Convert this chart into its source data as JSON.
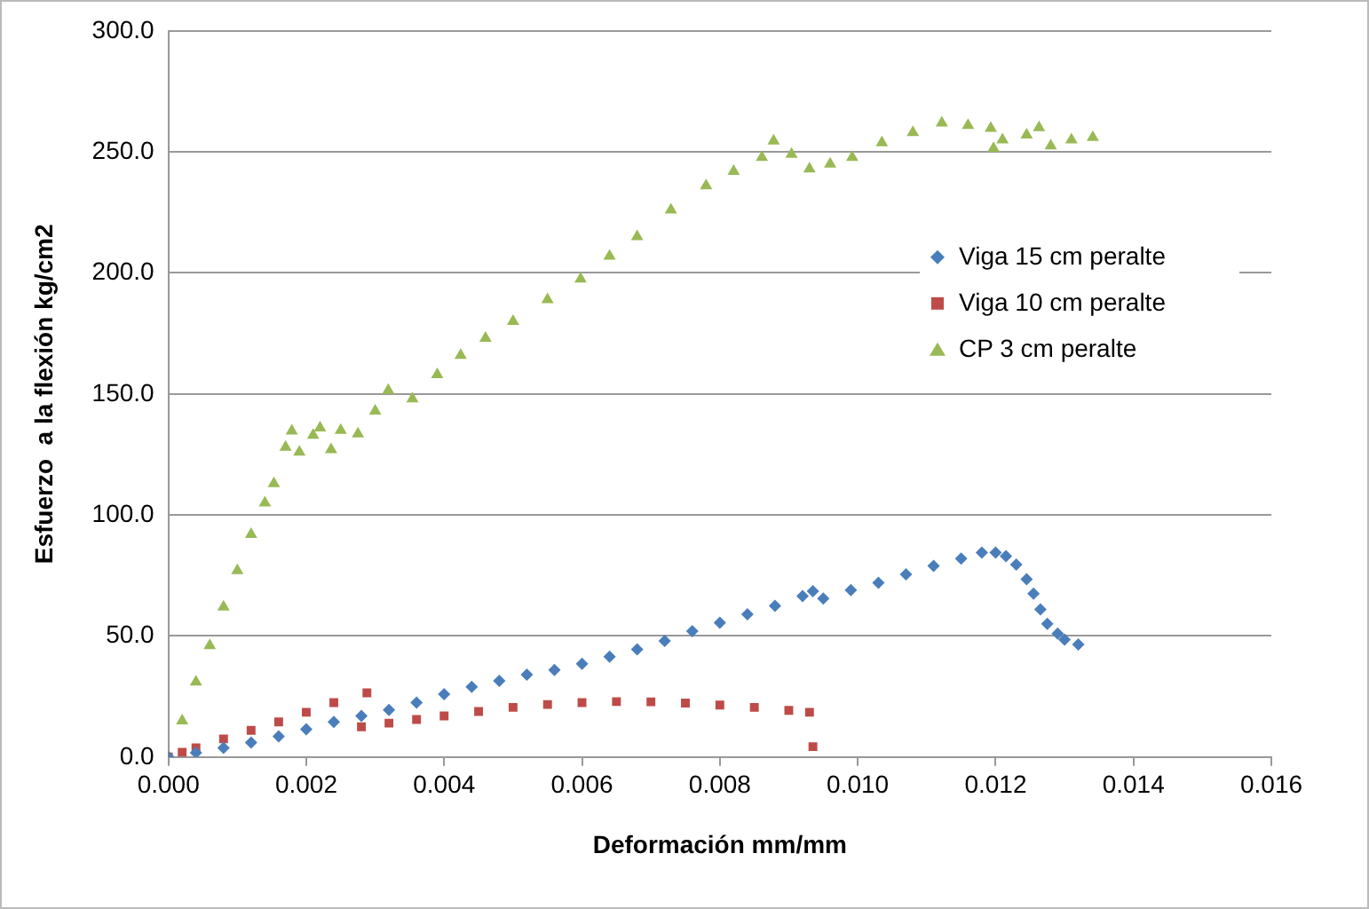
{
  "chart_data": {
    "type": "scatter",
    "xlabel": "Deformación mm/mm",
    "ylabel": "Esfuerzo  a la flexión kg/cm2",
    "xlim": [
      0,
      0.016
    ],
    "xticks": [
      {
        "value": 0,
        "label": "0.000"
      },
      {
        "value": 0.002,
        "label": "0.002"
      },
      {
        "value": 0.004,
        "label": "0.004"
      },
      {
        "value": 0.006,
        "label": "0.006"
      },
      {
        "value": 0.008,
        "label": "0.008"
      },
      {
        "value": 0.01,
        "label": "0.010"
      },
      {
        "value": 0.012,
        "label": "0.012"
      },
      {
        "value": 0.014,
        "label": "0.014"
      },
      {
        "value": 0.016,
        "label": "0.016"
      }
    ],
    "ylim": [
      0,
      300
    ],
    "yticks": [
      {
        "value": 0,
        "label": "0.0"
      },
      {
        "value": 50,
        "label": "50.0"
      },
      {
        "value": 100,
        "label": "100.0"
      },
      {
        "value": 150,
        "label": "150.0"
      },
      {
        "value": 200,
        "label": "200.0"
      },
      {
        "value": 250,
        "label": "250.0"
      },
      {
        "value": 300,
        "label": "300.0"
      }
    ],
    "grid": "y",
    "legend": "right",
    "series": [
      {
        "name": "Viga 15 cm peralte",
        "color": "#4a7ebb",
        "marker": "diamond",
        "x": [
          0,
          0.0004,
          0.0008,
          0.0012,
          0.0016,
          0.002,
          0.0024,
          0.0028,
          0.0032,
          0.0036,
          0.004,
          0.0044,
          0.0048,
          0.0052,
          0.0056,
          0.006,
          0.0064,
          0.0068,
          0.0072,
          0.0076,
          0.008,
          0.0084,
          0.0088,
          0.0092,
          0.00935,
          0.0095,
          0.0099,
          0.0103,
          0.0107,
          0.0111,
          0.0115,
          0.0118,
          0.012,
          0.01215,
          0.0123,
          0.01245,
          0.01255,
          0.01265,
          0.01275,
          0.0129,
          0.013,
          0.0132
        ],
        "values": [
          0,
          1.8,
          3.8,
          6,
          8.5,
          11.5,
          14.5,
          17,
          19.5,
          22.5,
          26,
          29,
          31.5,
          34,
          36,
          38.5,
          41.5,
          44.5,
          48,
          52,
          55.5,
          59,
          62.5,
          66.5,
          68.5,
          65.5,
          69,
          72,
          75.5,
          79,
          82,
          84.5,
          84.5,
          83,
          79.5,
          73.5,
          67.5,
          61,
          55,
          51,
          48.5,
          46.5
        ]
      },
      {
        "name": "Viga 10 cm peralte",
        "color": "#be4b48",
        "marker": "square",
        "x": [
          0,
          0.0002,
          0.0004,
          0.0008,
          0.0012,
          0.0016,
          0.002,
          0.0024,
          0.00288,
          0.0028,
          0.0032,
          0.0036,
          0.004,
          0.0045,
          0.005,
          0.0055,
          0.006,
          0.0065,
          0.007,
          0.0075,
          0.008,
          0.0085,
          0.009,
          0.0093,
          0.00935
        ],
        "values": [
          0,
          2,
          3.8,
          7.5,
          11,
          14.5,
          18.5,
          22.5,
          26.5,
          12.5,
          14,
          15.5,
          17,
          18.8,
          20.5,
          21.7,
          22.5,
          22.9,
          22.8,
          22.3,
          21.5,
          20.5,
          19.3,
          18.5,
          4.3
        ]
      },
      {
        "name": "CP 3 cm peralte",
        "color": "#98b954",
        "marker": "triangle",
        "x": [
          0,
          0.0002,
          0.0004,
          0.0006,
          0.0008,
          0.001,
          0.0012,
          0.0014,
          0.00153,
          0.0017,
          0.00179,
          0.0019,
          0.0021,
          0.0022,
          0.00236,
          0.0025,
          0.00275,
          0.003,
          0.00319,
          0.00354,
          0.0039,
          0.00424,
          0.0046,
          0.005,
          0.0055,
          0.00598,
          0.0064,
          0.0068,
          0.00729,
          0.0078,
          0.0082,
          0.00861,
          0.00878,
          0.00904,
          0.0093,
          0.0096,
          0.00992,
          0.01035,
          0.0108,
          0.01122,
          0.0116,
          0.01193,
          0.01197,
          0.0121,
          0.01245,
          0.01263,
          0.0128,
          0.0131,
          0.01341
        ],
        "values": [
          0,
          15,
          31,
          46,
          62,
          77,
          92,
          105,
          113,
          128,
          134.7,
          126,
          133,
          136,
          127,
          135,
          133.5,
          143,
          151.5,
          148,
          158,
          166,
          173,
          180,
          189,
          197.5,
          207,
          215,
          226,
          236,
          242,
          247.8,
          254.5,
          249,
          243,
          245,
          247.8,
          253.8,
          258,
          262,
          261,
          259.8,
          251.4,
          255,
          257,
          260,
          252.5,
          255,
          256
        ]
      }
    ]
  }
}
